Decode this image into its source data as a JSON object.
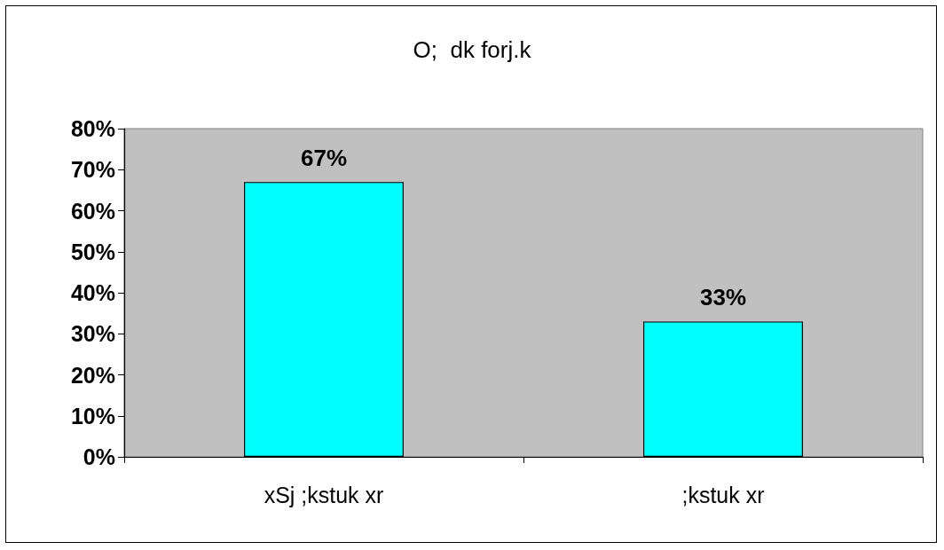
{
  "chart_data": {
    "type": "bar",
    "title": "O;  dk forj.k",
    "categories": [
      "xSj ;kstuk xr",
      ";kstuk xr"
    ],
    "values": [
      67,
      33
    ],
    "color": "#00ffff",
    "value_labels": [
      "67%",
      "33%"
    ],
    "ylim": [
      0,
      80
    ],
    "yticks": [
      {
        "value": 0,
        "label": "0%"
      },
      {
        "value": 10,
        "label": "10%"
      },
      {
        "value": 20,
        "label": "20%"
      },
      {
        "value": 30,
        "label": "30%"
      },
      {
        "value": 40,
        "label": "40%"
      },
      {
        "value": 50,
        "label": "50%"
      },
      {
        "value": 60,
        "label": "60%"
      },
      {
        "value": 70,
        "label": "70%"
      },
      {
        "value": 80,
        "label": "80%"
      }
    ],
    "grid": false
  }
}
